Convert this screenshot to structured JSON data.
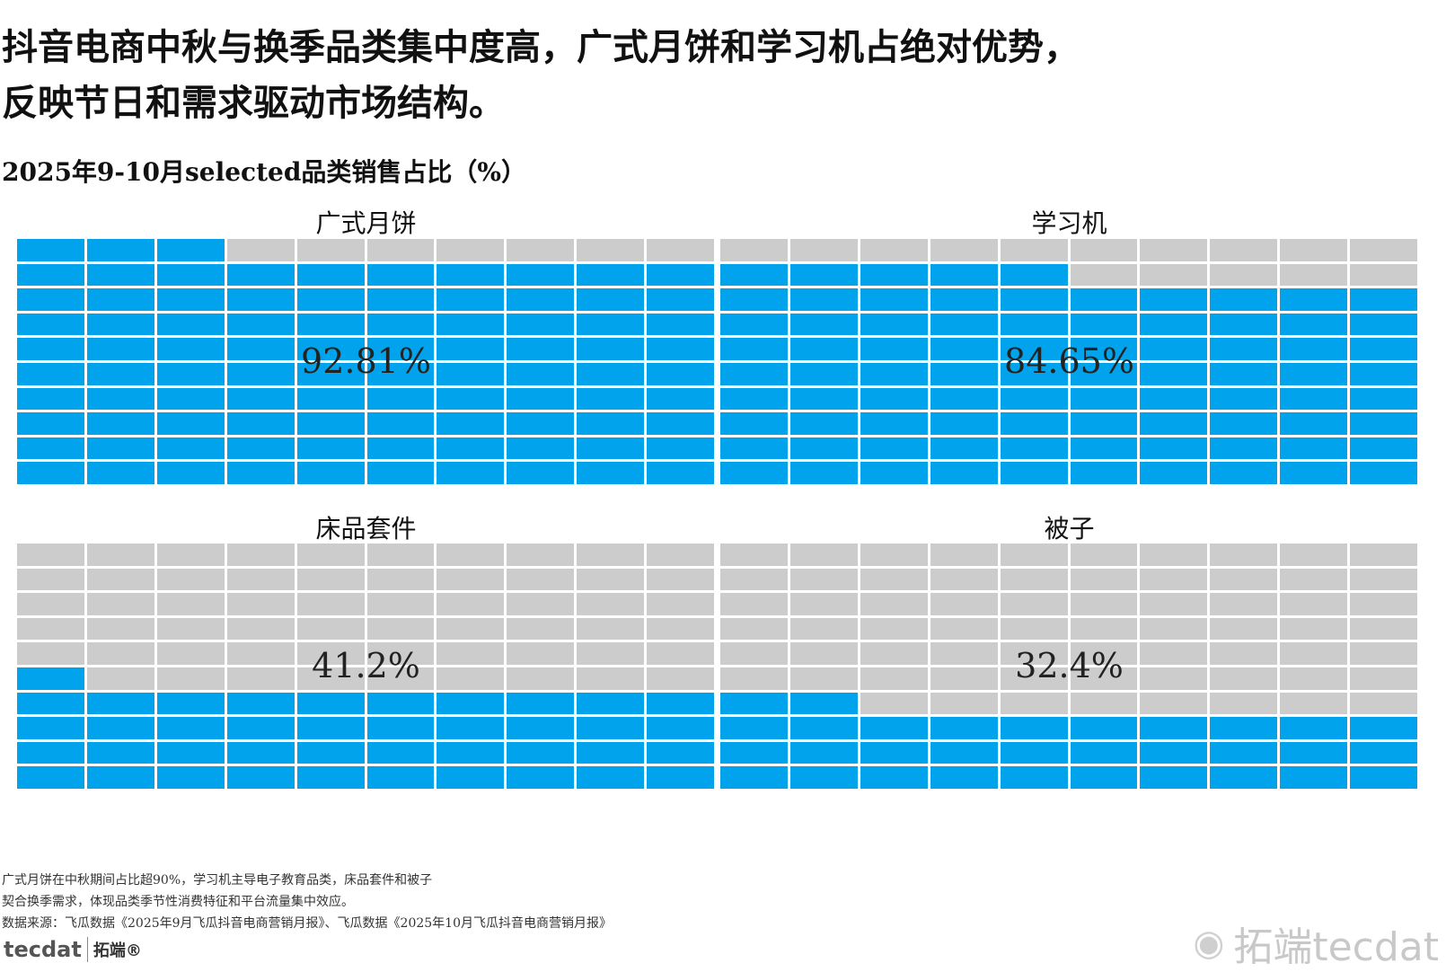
{
  "headline": {
    "line1": "抖音电商中秋与换季品类集中度高，广式月饼和学习机占绝对优势，",
    "line2": "反映节日和需求驱动市场结构。"
  },
  "subtitle": "2025年9-10月selected品类销售占比（%）",
  "chart_data": {
    "type": "waffle",
    "title": "2025年9-10月selected品类销售占比（%）",
    "grid": [
      10,
      10
    ],
    "panels": [
      {
        "label": "广式月饼",
        "value": 92.81,
        "display": "92.81%"
      },
      {
        "label": "学习机",
        "value": 84.65,
        "display": "84.65%"
      },
      {
        "label": "床品套件",
        "value": 41.2,
        "display": "41.2%"
      },
      {
        "label": "被子",
        "value": 32.4,
        "display": "32.4%"
      }
    ],
    "colors": {
      "filled": "#00a3ec",
      "empty": "#cccccc"
    }
  },
  "notes": {
    "line1": "广式月饼在中秋期间占比超90%，学习机主导电子教育品类，床品套件和被子",
    "line2": "契合换季需求，体现品类季节性消费特征和平台流量集中效应。",
    "source": "数据来源：飞瓜数据《2025年9月飞瓜抖音电商营销月报》、飞瓜数据《2025年10月飞瓜抖音电商营销月报》"
  },
  "logo": {
    "mark": "tecdat",
    "text": "拓端®"
  },
  "watermark": {
    "icon": "weibo-icon",
    "text": "拓端tecdat"
  }
}
